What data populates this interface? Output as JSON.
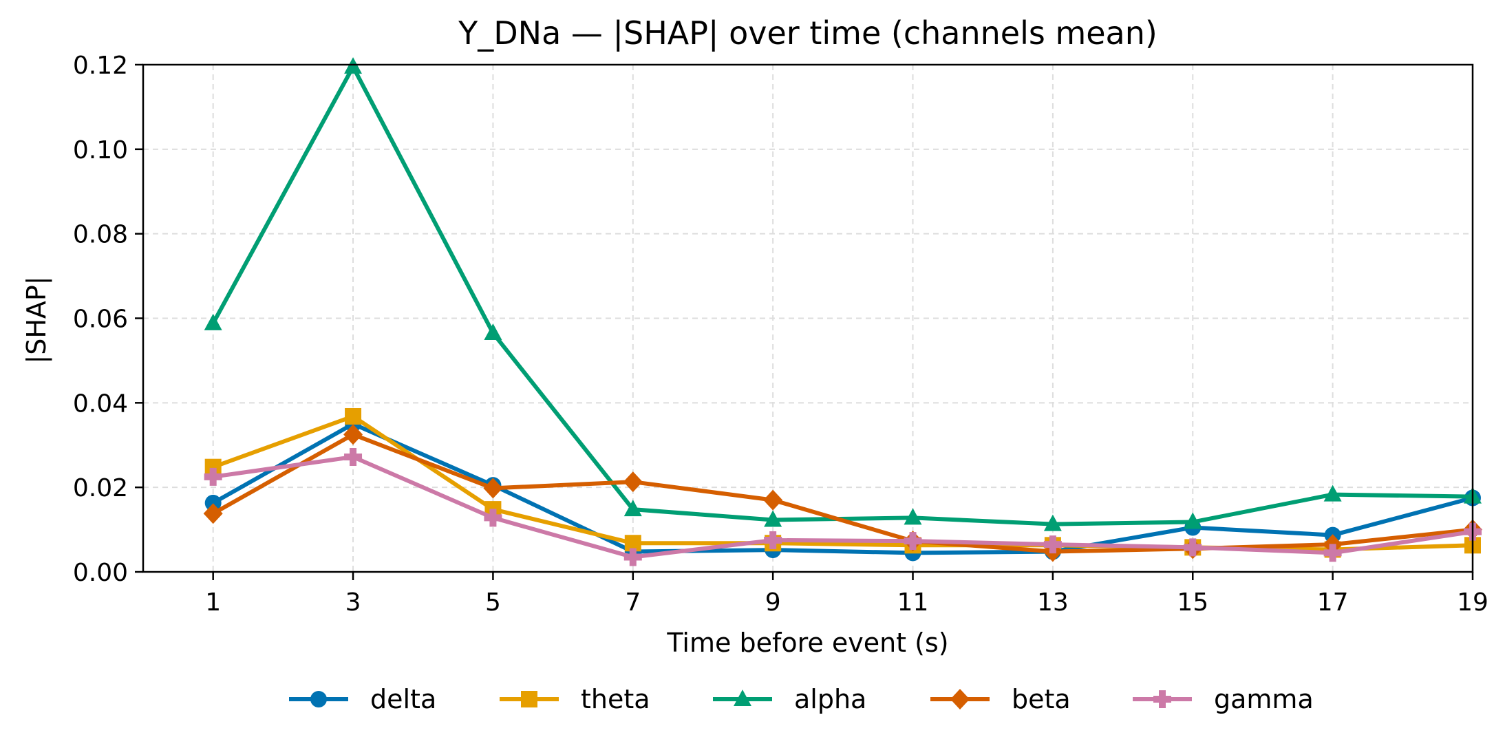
{
  "chart_data": {
    "type": "line",
    "title": "Y_DNa — |SHAP| over time (channels mean)",
    "xlabel": "Time before event (s)",
    "ylabel": "|SHAP|",
    "xlim": [
      0,
      19
    ],
    "ylim": [
      0,
      0.12
    ],
    "x": [
      1,
      3,
      5,
      7,
      9,
      11,
      13,
      15,
      17,
      19
    ],
    "x_ticks": [
      "1",
      "3",
      "5",
      "7",
      "9",
      "11",
      "13",
      "15",
      "17",
      "19"
    ],
    "y_ticks": [
      0,
      0.02,
      0.04,
      0.06,
      0.08,
      0.1,
      0.12
    ],
    "y_tick_labels": [
      "0.00",
      "0.02",
      "0.04",
      "0.06",
      "0.08",
      "0.10",
      "0.12"
    ],
    "grid": true,
    "legend_position": "bottom-center",
    "series": [
      {
        "name": "delta",
        "color": "#0072B2",
        "marker": "circle",
        "values": [
          0.0163,
          0.035,
          0.0205,
          0.0048,
          0.0052,
          0.0045,
          0.0048,
          0.0105,
          0.0087,
          0.0175
        ]
      },
      {
        "name": "theta",
        "color": "#E69F00",
        "marker": "square",
        "values": [
          0.0248,
          0.0368,
          0.0148,
          0.0068,
          0.0068,
          0.0063,
          0.0063,
          0.0058,
          0.0053,
          0.0063
        ]
      },
      {
        "name": "alpha",
        "color": "#009E73",
        "marker": "triangle",
        "values": [
          0.0588,
          0.1195,
          0.0565,
          0.0148,
          0.0123,
          0.0128,
          0.0113,
          0.0118,
          0.0183,
          0.0178
        ]
      },
      {
        "name": "beta",
        "color": "#D55E00",
        "marker": "diamond",
        "values": [
          0.0138,
          0.0325,
          0.0198,
          0.0213,
          0.017,
          0.0073,
          0.0048,
          0.0055,
          0.0065,
          0.01
        ]
      },
      {
        "name": "gamma",
        "color": "#CC79A7",
        "marker": "plus",
        "values": [
          0.0225,
          0.0272,
          0.0128,
          0.0035,
          0.0075,
          0.0073,
          0.0065,
          0.0058,
          0.0045,
          0.0095
        ]
      }
    ]
  }
}
